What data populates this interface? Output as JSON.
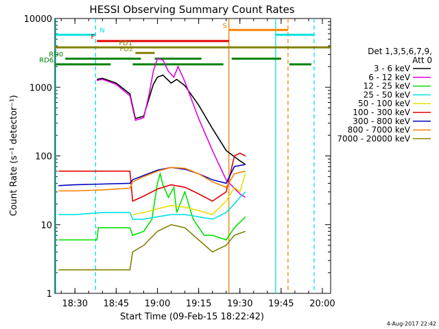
{
  "chart_data": {
    "type": "line",
    "title": "HESSI Observing Summary Count Rates",
    "xlabel": "Start Time (09-Feb-15 18:22:42)",
    "ylabel": "Count Rate (s⁻¹ detector⁻¹)",
    "yscale": "log",
    "ylim": [
      1,
      10000
    ],
    "xlim": [
      "18:22:42",
      "20:03:00"
    ],
    "grid": false,
    "legend_position": "right",
    "legend_header": [
      "Det 1,3,5,6,7,9,",
      "Att 0"
    ],
    "date_stamp": "4-Aug-2017 22:42",
    "x_ticks": [
      "18:30",
      "18:45",
      "19:00",
      "19:15",
      "19:30",
      "19:45",
      "20:00"
    ],
    "y_ticks": [
      "1",
      "10",
      "100",
      "1000",
      "10000"
    ],
    "series": [
      {
        "name": "3 - 6 keV",
        "color": "#000000",
        "points": [
          [
            "18:38:00",
            1300
          ],
          [
            "18:40:00",
            1350
          ],
          [
            "18:45:00",
            1150
          ],
          [
            "18:50:00",
            800
          ],
          [
            "18:52:00",
            350
          ],
          [
            "18:55:00",
            380
          ],
          [
            "18:57:00",
            700
          ],
          [
            "18:58:30",
            1100
          ],
          [
            "19:00:00",
            1400
          ],
          [
            "19:02:00",
            1500
          ],
          [
            "19:05:00",
            1150
          ],
          [
            "19:07:00",
            1300
          ],
          [
            "19:10:00",
            1050
          ],
          [
            "19:15:00",
            550
          ],
          [
            "19:20:00",
            250
          ],
          [
            "19:25:00",
            120
          ],
          [
            "19:30:00",
            85
          ],
          [
            "19:32:00",
            75
          ]
        ]
      },
      {
        "name": "6 - 12 keV",
        "color": "#e000e0",
        "points": [
          [
            "18:38:00",
            1250
          ],
          [
            "18:40:00",
            1300
          ],
          [
            "18:45:00",
            1100
          ],
          [
            "18:50:00",
            750
          ],
          [
            "18:52:00",
            330
          ],
          [
            "18:55:00",
            360
          ],
          [
            "18:57:00",
            800
          ],
          [
            "18:58:30",
            1700
          ],
          [
            "19:00:00",
            2600
          ],
          [
            "19:02:00",
            2500
          ],
          [
            "19:04:00",
            1700
          ],
          [
            "19:06:00",
            1400
          ],
          [
            "19:07:30",
            2000
          ],
          [
            "19:10:00",
            1200
          ],
          [
            "19:15:00",
            350
          ],
          [
            "19:20:00",
            120
          ],
          [
            "19:25:00",
            45
          ],
          [
            "19:30:00",
            28
          ],
          [
            "19:32:00",
            25
          ]
        ]
      },
      {
        "name": "12 - 25 keV",
        "color": "#00e000",
        "points": [
          [
            "18:24:00",
            6
          ],
          [
            "18:38:00",
            6
          ],
          [
            "18:38:30",
            9
          ],
          [
            "18:45:00",
            9
          ],
          [
            "18:50:00",
            9
          ],
          [
            "18:51:00",
            7
          ],
          [
            "18:55:00",
            8
          ],
          [
            "18:58:00",
            12
          ],
          [
            "19:00:00",
            40
          ],
          [
            "19:01:00",
            55
          ],
          [
            "19:02:00",
            38
          ],
          [
            "19:04:00",
            25
          ],
          [
            "19:06:00",
            35
          ],
          [
            "19:07:00",
            15
          ],
          [
            "19:10:00",
            30
          ],
          [
            "19:13:00",
            12
          ],
          [
            "19:17:00",
            7
          ],
          [
            "19:20:00",
            7
          ],
          [
            "19:25:00",
            6
          ],
          [
            "19:28:00",
            9
          ],
          [
            "19:32:00",
            13
          ]
        ]
      },
      {
        "name": "25 - 50 keV",
        "color": "#00e0e0",
        "points": [
          [
            "18:24:00",
            14
          ],
          [
            "18:30:00",
            14
          ],
          [
            "18:40:00",
            15
          ],
          [
            "18:50:00",
            15
          ],
          [
            "18:51:00",
            12
          ],
          [
            "18:55:00",
            12
          ],
          [
            "19:00:00",
            13
          ],
          [
            "19:05:00",
            14
          ],
          [
            "19:10:00",
            14
          ],
          [
            "19:15:00",
            13
          ],
          [
            "19:20:00",
            12
          ],
          [
            "19:25:00",
            15
          ],
          [
            "19:28:00",
            20
          ],
          [
            "19:30:00",
            25
          ],
          [
            "19:32:00",
            30
          ]
        ]
      },
      {
        "name": "50 - 100 keV",
        "color": "#e0e000",
        "points": [
          [
            "18:51:00",
            14
          ],
          [
            "18:55:00",
            15
          ],
          [
            "19:00:00",
            17
          ],
          [
            "19:05:00",
            19
          ],
          [
            "19:10:00",
            18
          ],
          [
            "19:15:00",
            16
          ],
          [
            "19:20:00",
            14
          ],
          [
            "19:25:00",
            22
          ],
          [
            "19:28:00",
            35
          ],
          [
            "19:30:00",
            30
          ],
          [
            "19:32:00",
            55
          ]
        ]
      },
      {
        "name": "100 - 300 keV",
        "color": "#e00000",
        "points": [
          [
            "18:24:00",
            60
          ],
          [
            "18:30:00",
            60
          ],
          [
            "18:40:00",
            60
          ],
          [
            "18:50:00",
            60
          ],
          [
            "18:51:00",
            22
          ],
          [
            "18:55:00",
            26
          ],
          [
            "19:00:00",
            33
          ],
          [
            "19:05:00",
            38
          ],
          [
            "19:10:00",
            35
          ],
          [
            "19:15:00",
            28
          ],
          [
            "19:20:00",
            22
          ],
          [
            "19:25:00",
            30
          ],
          [
            "19:28:00",
            100
          ],
          [
            "19:30:00",
            110
          ],
          [
            "19:32:00",
            100
          ]
        ]
      },
      {
        "name": "300 - 800 keV",
        "color": "#0000c0",
        "points": [
          [
            "18:24:00",
            37
          ],
          [
            "18:30:00",
            38
          ],
          [
            "18:40:00",
            39
          ],
          [
            "18:50:00",
            40
          ],
          [
            "18:51:00",
            45
          ],
          [
            "18:55:00",
            52
          ],
          [
            "19:00:00",
            62
          ],
          [
            "19:05:00",
            68
          ],
          [
            "19:10:00",
            64
          ],
          [
            "19:15:00",
            55
          ],
          [
            "19:20:00",
            45
          ],
          [
            "19:25:00",
            40
          ],
          [
            "19:28:00",
            70
          ],
          [
            "19:32:00",
            75
          ]
        ]
      },
      {
        "name": "800 - 7000 keV",
        "color": "#ff8000",
        "points": [
          [
            "18:24:00",
            31
          ],
          [
            "18:30:00",
            31
          ],
          [
            "18:40:00",
            32
          ],
          [
            "18:50:00",
            34
          ],
          [
            "18:51:00",
            42
          ],
          [
            "18:55:00",
            50
          ],
          [
            "19:00:00",
            60
          ],
          [
            "19:05:00",
            68
          ],
          [
            "19:10:00",
            66
          ],
          [
            "19:15:00",
            55
          ],
          [
            "19:20:00",
            42
          ],
          [
            "19:25:00",
            35
          ],
          [
            "19:28:00",
            55
          ],
          [
            "19:32:00",
            60
          ]
        ]
      },
      {
        "name": "7000 - 20000 keV",
        "color": "#808000",
        "points": [
          [
            "18:24:00",
            2.2
          ],
          [
            "18:30:00",
            2.2
          ],
          [
            "18:40:00",
            2.2
          ],
          [
            "18:50:00",
            2.2
          ],
          [
            "18:51:00",
            4
          ],
          [
            "18:55:00",
            5
          ],
          [
            "19:00:00",
            8
          ],
          [
            "19:05:00",
            10
          ],
          [
            "19:10:00",
            9
          ],
          [
            "19:15:00",
            6
          ],
          [
            "19:20:00",
            4
          ],
          [
            "19:25:00",
            5
          ],
          [
            "19:28:00",
            7
          ],
          [
            "19:32:00",
            8
          ]
        ]
      }
    ],
    "vertical_markers": [
      {
        "time": "18:23:00",
        "color": "#00e0e0",
        "style": "solid"
      },
      {
        "time": "18:37:30",
        "color": "#00e0e0",
        "style": "dashed"
      },
      {
        "time": "19:26:00",
        "color": "#e08000",
        "style": "solid"
      },
      {
        "time": "19:43:00",
        "color": "#00e0e0",
        "style": "solid"
      },
      {
        "time": "19:47:30",
        "color": "#ff8000",
        "style": "dashed"
      },
      {
        "time": "19:57:00",
        "color": "#00e0e0",
        "style": "dashed"
      }
    ],
    "flag_bars": [
      {
        "label": "N",
        "color": "#00e0e0",
        "y": 5800,
        "segments": [
          [
            "18:23:00",
            "18:37:30"
          ],
          [
            "19:43:00",
            "19:57:00"
          ]
        ]
      },
      {
        "label": "S",
        "color": "#ff8000",
        "y": 6800,
        "segments": [
          [
            "19:26:00",
            "19:47:30"
          ]
        ]
      },
      {
        "label": "F",
        "color": "#e00000",
        "y": 4700,
        "segments": [
          [
            "18:38:00",
            "19:26:00"
          ]
        ]
      },
      {
        "label": "FD1",
        "color": "#808000",
        "y": 3800,
        "segments": [
          [
            "18:22:42",
            "20:03:00"
          ]
        ]
      },
      {
        "label": "FD2",
        "color": "#808000",
        "y": 3150,
        "segments": [
          [
            "18:52:00",
            "18:59:00"
          ]
        ]
      },
      {
        "label": "RD0",
        "color": "#008000",
        "y": 2600,
        "segments": [
          [
            "18:26:30",
            "18:54:00"
          ],
          [
            "18:59:00",
            "19:16:00"
          ],
          [
            "19:27:00",
            "19:45:00"
          ]
        ]
      },
      {
        "label": "RD6",
        "color": "#008000",
        "y": 2150,
        "segments": [
          [
            "18:23:00",
            "18:43:00"
          ],
          [
            "18:51:00",
            "19:24:00"
          ],
          [
            "19:48:00",
            "19:56:00"
          ]
        ]
      }
    ]
  }
}
